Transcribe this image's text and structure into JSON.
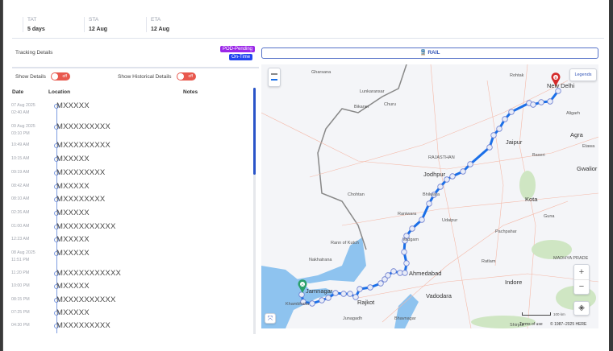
{
  "summary": [
    {
      "label": "TAT",
      "value": "5 days"
    },
    {
      "label": "STA",
      "value": "12 Aug"
    },
    {
      "label": "ETA",
      "value": "12 Aug"
    }
  ],
  "tracking": {
    "title": "Tracking Details",
    "badges": {
      "pod": "POD-Pending",
      "status": "On-Time"
    },
    "show_details": "Show Details",
    "show_historical": "Show Historical Details",
    "toggle_off": "off",
    "columns": {
      "date": "Date",
      "location": "Location",
      "notes": "Notes"
    },
    "events": [
      {
        "date": "07 Aug 2025",
        "time": "02:40 AM",
        "location": "MXXXXX"
      },
      {
        "date": "09 Aug 2025",
        "time": "03:10 PM",
        "location": "MXXXXXXXXX"
      },
      {
        "date": "",
        "time": "10:49 AM",
        "location": "MXXXXXXXXX"
      },
      {
        "date": "",
        "time": "10:15 AM",
        "location": "MXXXXX"
      },
      {
        "date": "",
        "time": "09:19 AM",
        "location": "MXXXXXXXX"
      },
      {
        "date": "",
        "time": "08:42 AM",
        "location": "MXXXXX"
      },
      {
        "date": "",
        "time": "08:10 AM",
        "location": "MXXXXXXXX"
      },
      {
        "date": "",
        "time": "02:26 AM",
        "location": "MXXXXX"
      },
      {
        "date": "",
        "time": "01:00 AM",
        "location": "MXXXXXXXXXX"
      },
      {
        "date": "",
        "time": "12:23 AM",
        "location": "MXXXXX"
      },
      {
        "date": "08 Aug 2025",
        "time": "11:51 PM",
        "location": "MXXXXX"
      },
      {
        "date": "",
        "time": "11:20 PM",
        "location": "MXXXXXXXXXXX"
      },
      {
        "date": "",
        "time": "10:00 PM",
        "location": "MXXXXX"
      },
      {
        "date": "",
        "time": "08:15 PM",
        "location": "MXXXXXXXXXX"
      },
      {
        "date": "",
        "time": "07:25 PM",
        "location": "MXXXXX"
      },
      {
        "date": "",
        "time": "04:30 PM",
        "location": "MXXXXXXXXX"
      }
    ]
  },
  "map": {
    "mode": "RAIL",
    "mode_icon": "train-icon",
    "legends": "Legends",
    "start_marker": "A",
    "end_marker": "B",
    "route_color": "#1a6fe8",
    "zoom_in": "+",
    "zoom_out": "−",
    "scale": "100 km",
    "terms": "Terms of use",
    "copyright": "© 1987–2025 HERE",
    "places": [
      "Gharsana",
      "Lunkaransar",
      "Bikaner",
      "Churu",
      "Rohtak",
      "New Delhi",
      "Aligarh",
      "Agra",
      "Jaipur",
      "RAJASTHAN",
      "Jodhpur",
      "Bhilwara",
      "Chohtan",
      "Kota",
      "Gwalior",
      "Rann of Kutch",
      "Nakhatrana",
      "Raniwara",
      "Udaipur",
      "Vadgam",
      "Ahmedabad",
      "Jamnagar",
      "Rajkot",
      "Vadodara",
      "Bhavnagar",
      "Junagadh",
      "Ratlam",
      "Indore",
      "MADHYA PRADE",
      "Guna",
      "Baseri",
      "Etawa",
      "Pachpahar",
      "Shirpur",
      "Khambhalia"
    ]
  }
}
